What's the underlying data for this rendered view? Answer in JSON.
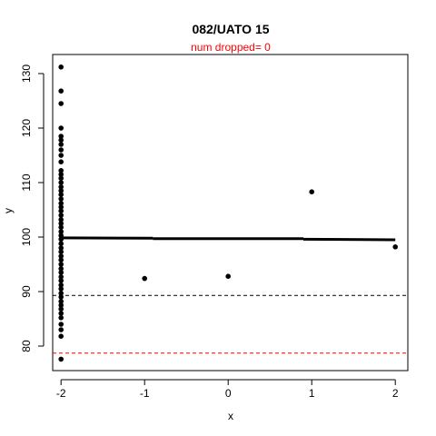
{
  "chart_data": {
    "type": "scatter",
    "title": "082/UATO 15",
    "subtitle": "num dropped= 0",
    "xlabel": "x",
    "ylabel": "y",
    "xlim": [
      -2.1,
      2.15
    ],
    "ylim": [
      75.5,
      133.5
    ],
    "x_ticks": [
      -2,
      -1,
      0,
      1,
      2
    ],
    "x_tick_labels": [
      "-2",
      "-1",
      "0",
      "1",
      "2"
    ],
    "y_ticks": [
      80,
      90,
      100,
      110,
      120,
      130
    ],
    "y_tick_labels": [
      "80",
      "90",
      "100",
      "110",
      "120",
      "130"
    ],
    "points": [
      {
        "x": -2,
        "y": 131.2
      },
      {
        "x": -2,
        "y": 126.8
      },
      {
        "x": -2,
        "y": 124.5
      },
      {
        "x": -2,
        "y": 120.0
      },
      {
        "x": -2,
        "y": 118.5
      },
      {
        "x": -2,
        "y": 117.8
      },
      {
        "x": -2,
        "y": 117.0
      },
      {
        "x": -2,
        "y": 116.0
      },
      {
        "x": -2,
        "y": 115.0
      },
      {
        "x": -2,
        "y": 113.8
      },
      {
        "x": -2,
        "y": 112.2
      },
      {
        "x": -2,
        "y": 111.5
      },
      {
        "x": -2,
        "y": 110.8
      },
      {
        "x": -2,
        "y": 110.0
      },
      {
        "x": -2,
        "y": 109.2
      },
      {
        "x": -2,
        "y": 108.5
      },
      {
        "x": -2,
        "y": 107.8
      },
      {
        "x": -2,
        "y": 107.0
      },
      {
        "x": -2,
        "y": 106.2
      },
      {
        "x": -2,
        "y": 105.5
      },
      {
        "x": -2,
        "y": 104.8
      },
      {
        "x": -2,
        "y": 104.0
      },
      {
        "x": -2,
        "y": 103.2
      },
      {
        "x": -2,
        "y": 102.5
      },
      {
        "x": -2,
        "y": 101.8
      },
      {
        "x": -2,
        "y": 101.0
      },
      {
        "x": -2,
        "y": 100.3
      },
      {
        "x": -2,
        "y": 99.6
      },
      {
        "x": -2,
        "y": 98.8
      },
      {
        "x": -2,
        "y": 98.0
      },
      {
        "x": -2,
        "y": 97.3
      },
      {
        "x": -2,
        "y": 96.5
      },
      {
        "x": -2,
        "y": 95.8
      },
      {
        "x": -2,
        "y": 95.0
      },
      {
        "x": -2,
        "y": 94.2
      },
      {
        "x": -2,
        "y": 93.5
      },
      {
        "x": -2,
        "y": 92.7
      },
      {
        "x": -2,
        "y": 92.0
      },
      {
        "x": -2,
        "y": 91.2
      },
      {
        "x": -2,
        "y": 90.5
      },
      {
        "x": -2,
        "y": 89.7
      },
      {
        "x": -2,
        "y": 89.0
      },
      {
        "x": -2,
        "y": 88.2
      },
      {
        "x": -2,
        "y": 87.5
      },
      {
        "x": -2,
        "y": 86.8
      },
      {
        "x": -2,
        "y": 86.0
      },
      {
        "x": -2,
        "y": 85.2
      },
      {
        "x": -2,
        "y": 84.0
      },
      {
        "x": -2,
        "y": 83.0
      },
      {
        "x": -2,
        "y": 81.8
      },
      {
        "x": -2,
        "y": 77.6
      },
      {
        "x": -1,
        "y": 92.4
      },
      {
        "x": 0,
        "y": 92.8
      },
      {
        "x": 1,
        "y": 108.3
      },
      {
        "x": 2,
        "y": 98.2
      }
    ],
    "fit_line": {
      "color": "#000000",
      "segments": [
        {
          "x": [
            -2,
            -0.9
          ],
          "y": [
            99.85,
            99.8
          ]
        },
        {
          "x": [
            -0.9,
            0.9
          ],
          "y": [
            99.7,
            99.7
          ]
        },
        {
          "x": [
            0.9,
            2
          ],
          "y": [
            99.6,
            99.5
          ]
        }
      ]
    },
    "reference_lines": [
      {
        "y": 89.3,
        "color": "#000000",
        "style": "dashed"
      },
      {
        "y": 78.7,
        "color": "#ff0000",
        "style": "dashed"
      }
    ],
    "colors": {
      "points": "#000000",
      "subtitle": "#ff0000",
      "axes": "#000000"
    },
    "grid": false
  }
}
